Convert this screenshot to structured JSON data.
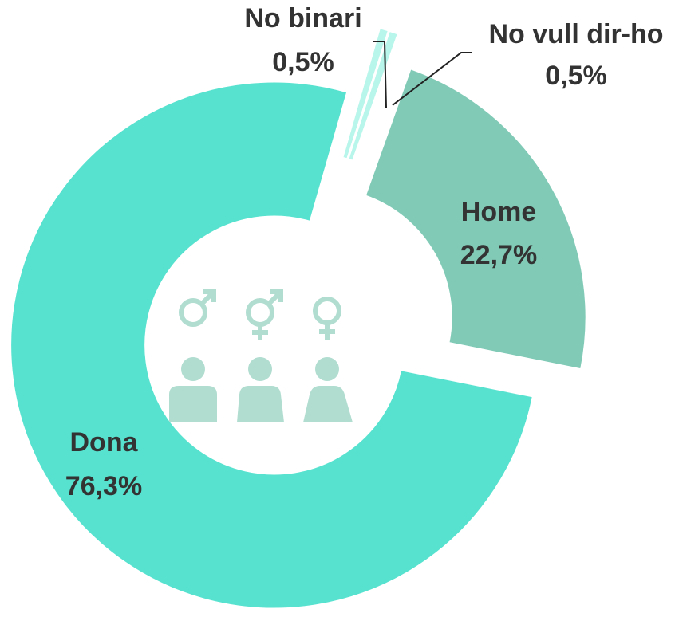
{
  "chart_data": {
    "type": "donut",
    "categories": [
      "No binari",
      "No vull dir-ho",
      "Home",
      "Dona"
    ],
    "values": [
      0.5,
      0.5,
      22.7,
      76.3
    ],
    "value_labels": [
      "0,5%",
      "0,5%",
      "22,7%",
      "76,3%"
    ],
    "colors": [
      "#b8f5ea",
      "#b8f5ea",
      "#80cab6",
      "#57e2cf"
    ]
  }
}
